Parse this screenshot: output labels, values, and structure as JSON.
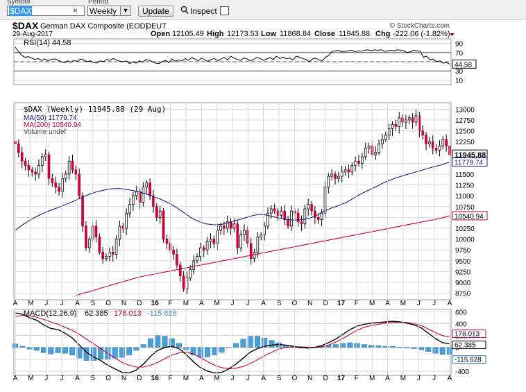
{
  "toolbar": {
    "symbol_label": "Symbol",
    "symbol_value": "$DAX",
    "clear_glyph": "×",
    "period_label": "Period",
    "period_value": "Weekly",
    "update_label": "Update",
    "inspect_label": "Inspect"
  },
  "header": {
    "ticker": "$DAX",
    "name": "German DAX Composite (EOD)",
    "exchange": "DEUT",
    "date": "29-Aug-2017",
    "brand": "© StockCharts.com",
    "open_label": "Open",
    "open": "12105.49",
    "high_label": "High",
    "high": "12173.53",
    "low_label": "Low",
    "low": "11868.84",
    "close_label": "Close",
    "close": "11945.88",
    "chg_label": "Chg",
    "chg": "-222.06 (-1.82%)"
  },
  "colors": {
    "up": "#ffffff",
    "down": "#cc0033",
    "ma50": "#1a1a8c",
    "ma200": "#cc0033",
    "macd": "#000000",
    "signal": "#cc0033",
    "hist": "#4a9fd8",
    "grid": "#d8d8d8"
  },
  "chart_data": [
    {
      "type": "line",
      "panel": "RSI",
      "legend": "RSI(14) 44.58",
      "last_label": "44.58",
      "ylim": [
        0,
        100
      ],
      "yticks": [
        "90",
        "70",
        "50",
        "30",
        "10"
      ],
      "levels": [
        70,
        30
      ],
      "values": [
        82,
        72,
        64,
        60,
        61,
        58,
        55,
        57,
        53,
        56,
        52,
        55,
        56,
        54,
        50,
        48,
        52,
        49,
        53,
        51,
        56,
        54,
        50,
        52,
        48,
        47,
        52,
        50,
        55,
        53,
        57,
        54,
        51,
        50,
        52,
        46,
        50,
        47,
        52,
        49,
        55,
        53,
        50,
        47,
        46,
        50,
        53,
        48,
        56,
        51,
        54,
        52,
        57,
        53,
        59,
        56,
        52,
        58,
        54,
        51,
        55,
        57,
        52,
        56,
        60,
        54,
        62,
        58,
        55,
        53,
        58,
        56,
        52,
        55,
        60,
        57,
        53,
        56,
        59,
        55,
        62,
        57,
        60,
        56,
        58,
        54,
        62,
        60,
        57,
        55,
        50,
        56,
        58,
        54,
        52,
        60,
        64,
        73,
        74,
        75,
        72,
        73,
        74,
        75,
        72,
        74,
        73,
        75,
        76,
        74,
        76,
        75,
        76,
        73,
        74,
        75,
        74,
        76,
        75,
        74,
        70,
        72,
        75,
        74,
        73,
        60,
        62,
        54,
        56,
        50,
        52,
        47,
        48,
        45
      ]
    },
    {
      "type": "candlestick",
      "panel": "price",
      "legend": "$DAX (Weekly) 11945.88 (29 Aug)",
      "ylim": [
        8600,
        13150
      ],
      "yticks": [
        "13000",
        "12750",
        "12500",
        "12250",
        "11750",
        "11500",
        "11250",
        "11000",
        "10750",
        "10500",
        "10250",
        "10000",
        "9750",
        "9500",
        "9250",
        "9000",
        "8750"
      ],
      "last_label": "11945.88",
      "x_axis": [
        "A",
        "M",
        "J",
        "J",
        "A",
        "S",
        "O",
        "N",
        "D",
        "16",
        "F",
        "M",
        "A",
        "M",
        "J",
        "J",
        "A",
        "S",
        "O",
        "N",
        "D",
        "17",
        "F",
        "M",
        "A",
        "M",
        "J",
        "J",
        "A"
      ],
      "close": [
        12200,
        12000,
        11800,
        11700,
        11600,
        11550,
        11500,
        11700,
        11900,
        11950,
        11400,
        11300,
        11200,
        11100,
        11400,
        11500,
        11800,
        11600,
        11500,
        11000,
        10300,
        9800,
        10000,
        10300,
        10050,
        9700,
        9550,
        9600,
        9700,
        9650,
        10000,
        10300,
        10250,
        10600,
        10800,
        11000,
        11100,
        10850,
        11200,
        11300,
        11000,
        10750,
        10500,
        10650,
        10000,
        9900,
        9750,
        9650,
        9400,
        9150,
        8850,
        9100,
        9300,
        9500,
        9600,
        9800,
        9750,
        9950,
        10000,
        9900,
        10200,
        10300,
        10250,
        10400,
        10250,
        10350,
        9800,
        10100,
        10200,
        9900,
        9550,
        9700,
        10050,
        10100,
        10300,
        10600,
        10700,
        10650,
        10550,
        10650,
        10450,
        10300,
        10650,
        10600,
        10400,
        10350,
        10700,
        10800,
        10650,
        10500,
        10450,
        10600,
        11200,
        11450,
        11500,
        11400,
        11450,
        11550,
        11600,
        11550,
        11700,
        11800,
        11750,
        11900,
        12100,
        12150,
        11950,
        12000,
        12200,
        12300,
        12400,
        12550,
        12650,
        12600,
        12800,
        12700,
        12750,
        12800,
        12700,
        12850,
        12500,
        12400,
        12200,
        12250,
        12100,
        12050,
        12150,
        12300,
        12150,
        11945.88
      ],
      "ma": [
        {
          "name": "MA(50)",
          "legend": "MA(50) 11779.74",
          "label": "11779.74",
          "values": [
            10200,
            10330,
            10440,
            10530,
            10610,
            10680,
            10740,
            10810,
            10880,
            10960,
            11030,
            11090,
            11130,
            11160,
            11170,
            11150,
            11120,
            11080,
            11030,
            10970,
            10900,
            10820,
            10720,
            10600,
            10480,
            10400,
            10350,
            10330,
            10340,
            10380,
            10430,
            10480,
            10530,
            10570,
            10560,
            10520,
            10480,
            10450,
            10440,
            10450,
            10480,
            10560,
            10650,
            10720,
            10780,
            10850,
            10950,
            11050,
            11130,
            11210,
            11300,
            11370,
            11430,
            11480,
            11530,
            11580,
            11630,
            11680,
            11720,
            11779.74
          ]
        },
        {
          "name": "MA(200)",
          "legend": "MA(200) 10540.94",
          "label": "10540.94",
          "values": [
            8700,
            8760,
            8820,
            8880,
            8940,
            9000,
            9060,
            9120,
            9160,
            9200,
            9240,
            9280,
            9320,
            9360,
            9400,
            9440,
            9480,
            9520,
            9560,
            9600,
            9640,
            9680,
            9720,
            9760,
            9800,
            9840,
            9880,
            9920,
            9960,
            10000,
            10040,
            10080,
            10120,
            10160,
            10200,
            10240,
            10280,
            10320,
            10360,
            10400,
            10440,
            10480,
            10540.94
          ]
        }
      ],
      "volume_legend": "Volume undef"
    },
    {
      "type": "line+bar",
      "panel": "MACD",
      "legend_prefix": "MACD(12,26,9)",
      "macd_value": "62.385",
      "signal_value": "178.013",
      "hist_value": "-115.628",
      "ylim": [
        -470,
        640
      ],
      "yticks": [
        "600",
        "400",
        "200",
        "0",
        "-200",
        "-400"
      ],
      "macd": [
        580,
        560,
        500,
        460,
        380,
        320,
        300,
        240,
        160,
        40,
        -80,
        -160,
        -220,
        -300,
        -360,
        -420,
        -430,
        -380,
        -280,
        -150,
        -50,
        0,
        20,
        -20,
        -120,
        -240,
        -340,
        -400,
        -430,
        -420,
        -360,
        -280,
        -180,
        -80,
        -20,
        20,
        40,
        50,
        40,
        20,
        0,
        -10,
        0,
        30,
        80,
        140,
        220,
        300,
        360,
        390,
        410,
        420,
        430,
        440,
        430,
        410,
        380,
        330,
        240,
        150,
        80,
        62.385
      ],
      "signal": [
        520,
        540,
        530,
        510,
        470,
        430,
        390,
        340,
        290,
        220,
        140,
        60,
        -20,
        -100,
        -180,
        -250,
        -300,
        -330,
        -330,
        -300,
        -250,
        -190,
        -130,
        -90,
        -80,
        -110,
        -170,
        -240,
        -300,
        -340,
        -360,
        -350,
        -320,
        -270,
        -210,
        -140,
        -80,
        -30,
        0,
        10,
        10,
        5,
        0,
        10,
        40,
        90,
        150,
        220,
        290,
        340,
        370,
        390,
        410,
        420,
        425,
        420,
        400,
        370,
        310,
        250,
        200,
        178.013
      ]
    }
  ]
}
